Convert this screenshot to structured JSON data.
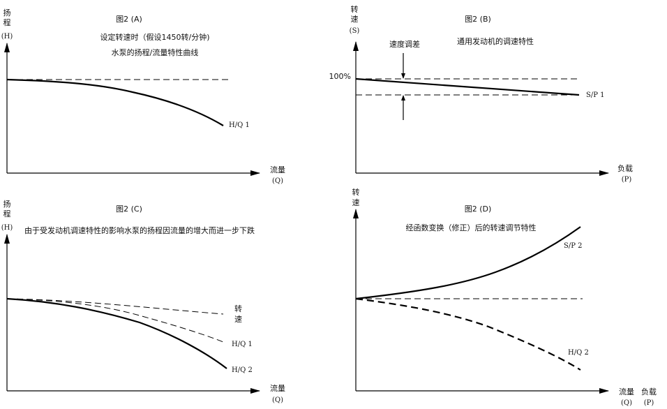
{
  "panels": {
    "a": {
      "title": "图2 (A)",
      "subtitle_line1": "设定转速时（假设1450转/分钟)",
      "subtitle_line2": "水泵的扬程/流量特性曲线",
      "y_label": [
        "扬",
        "程",
        "(H)"
      ],
      "x_label": [
        "流量",
        "(Q)"
      ],
      "curve_labels": [
        "H/Q 1"
      ]
    },
    "b": {
      "title": "图2 (B)",
      "subtitle": "通用发动机的调速特性",
      "y_label": [
        "转",
        "速",
        "(S)"
      ],
      "x_label": [
        "负载",
        "(P)"
      ],
      "tick_100": "100%",
      "annotation": "速度调差",
      "curve_labels": [
        "S/P 1"
      ]
    },
    "c": {
      "title": "图2 (C)",
      "subtitle": "由于受发动机调速特性的影响水泵的扬程因流量的增大而进一步下跌",
      "y_label": [
        "扬",
        "程",
        "(H)"
      ],
      "x_label": [
        "流量",
        "(Q)"
      ],
      "curve_labels": [
        "转",
        "速",
        "H/Q 1",
        "H/Q 2"
      ]
    },
    "d": {
      "title": "图2 (D)",
      "subtitle": "经函数变换（修正）后的转速调节特性",
      "y_label": [
        "转",
        "速"
      ],
      "x_label": [
        "流量",
        "(Q)",
        "负载",
        "(P)"
      ],
      "curve_labels": [
        "S/P 2",
        "H/Q 2"
      ]
    }
  }
}
